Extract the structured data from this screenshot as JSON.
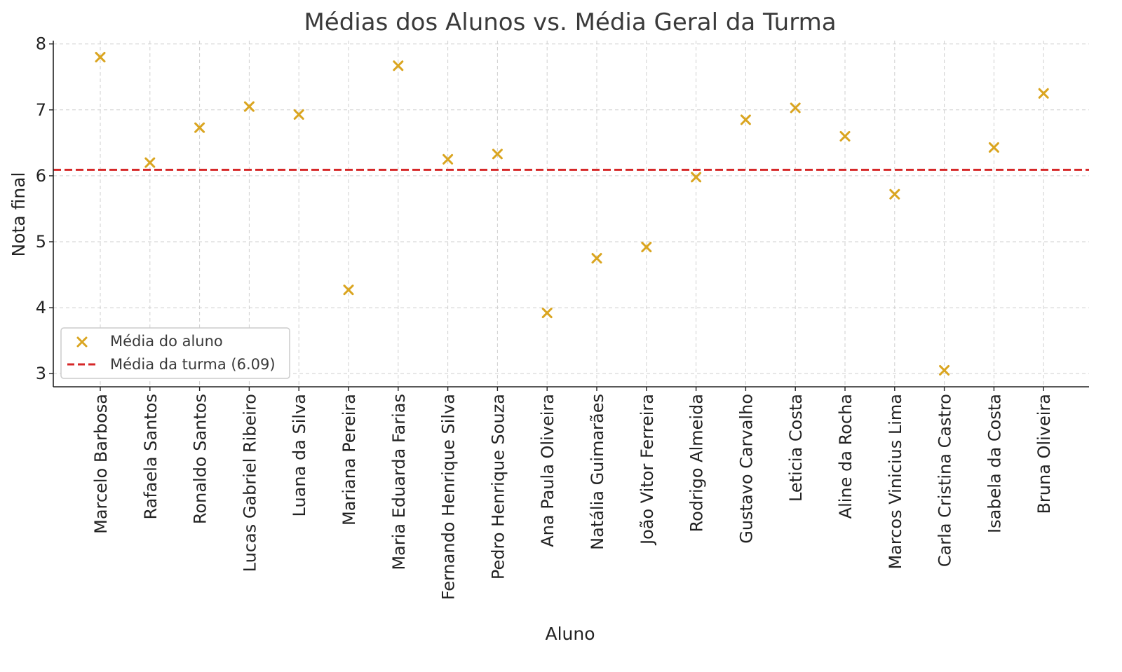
{
  "chart_data": {
    "type": "scatter",
    "title": "Médias dos Alunos vs. Média Geral da Turma",
    "xlabel": "Aluno",
    "ylabel": "Nota final",
    "ylim": [
      2.8,
      8.05
    ],
    "yticks": [
      3,
      4,
      5,
      6,
      7,
      8
    ],
    "grid": true,
    "legend_position": "lower-left",
    "categories": [
      "Marcelo Barbosa",
      "Rafaela Santos",
      "Ronaldo Santos",
      "Lucas Gabriel Ribeiro",
      "Luana da Silva",
      "Mariana Pereira",
      "Maria Eduarda Farias",
      "Fernando Henrique Silva",
      "Pedro Henrique Souza",
      "Ana Paula Oliveira",
      "Natália Guimarães",
      "João Vitor Ferreira",
      "Rodrigo Almeida",
      "Gustavo Carvalho",
      "Leticia Costa",
      "Aline da Rocha",
      "Marcos Vinicius Lima",
      "Carla Cristina Castro",
      "Isabela da Costa",
      "Bruna Oliveira"
    ],
    "series": [
      {
        "name": "Média do aluno",
        "marker": "x",
        "color": "#DAA520",
        "values": [
          7.8,
          6.2,
          6.73,
          7.05,
          6.93,
          4.27,
          7.67,
          6.25,
          6.33,
          3.92,
          4.75,
          4.92,
          5.98,
          6.85,
          7.03,
          6.6,
          5.72,
          3.05,
          6.43,
          7.25
        ]
      }
    ],
    "reference_line": {
      "name": "Média da turma (6.09)",
      "value": 6.09,
      "style": "dashed",
      "color": "#D62728"
    }
  }
}
